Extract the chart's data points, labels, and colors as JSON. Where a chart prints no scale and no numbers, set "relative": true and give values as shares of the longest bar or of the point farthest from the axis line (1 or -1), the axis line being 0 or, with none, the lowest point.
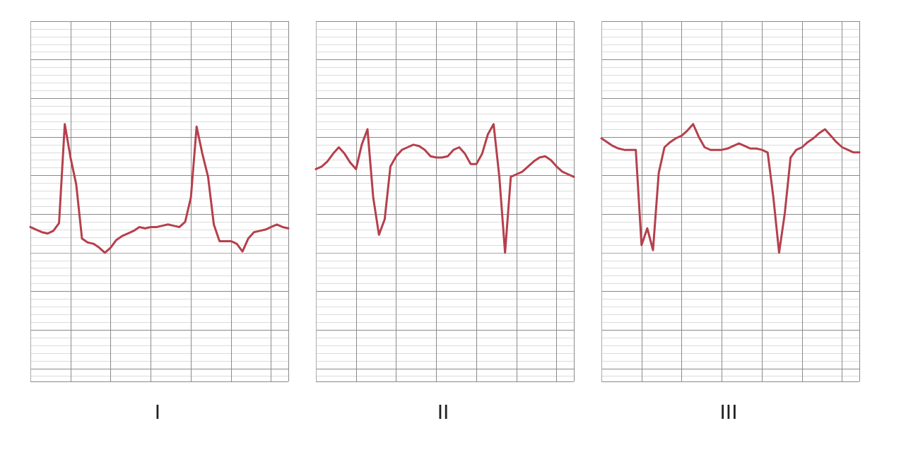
{
  "chart_data": [
    {
      "type": "line",
      "title": "I",
      "relative": true,
      "grid": true,
      "line_style": "solid",
      "color": "#b5404c",
      "categories": [
        null,
        null,
        null,
        null,
        null,
        null,
        null,
        null,
        null,
        null,
        null,
        null,
        null,
        null,
        null,
        null,
        null,
        null,
        null,
        null,
        null,
        null,
        null,
        null,
        null,
        null,
        null,
        null,
        null,
        null,
        null,
        null,
        null,
        null,
        null,
        null,
        null,
        null,
        null,
        null,
        null,
        null,
        null,
        null,
        null,
        null
      ],
      "values": [
        0.2,
        0.18,
        0.16,
        0.15,
        0.17,
        0.23,
        1,
        0.74,
        0.53,
        0.11,
        0.08,
        0.07,
        0.04,
        0,
        0.04,
        0.1,
        0.13,
        0.15,
        0.17,
        0.2,
        0.19,
        0.2,
        0.2,
        0.21,
        0.22,
        0.21,
        0.2,
        0.24,
        0.43,
        0.98,
        0.77,
        0.59,
        0.22,
        0.09,
        0.09,
        0.09,
        0.07,
        0.01,
        0.11,
        0.16,
        0.17,
        0.18,
        0.2,
        0.22,
        0.2,
        0.19
      ]
    },
    {
      "type": "line",
      "title": "II",
      "relative": true,
      "grid": true,
      "line_style": "solid",
      "color": "#b5404c",
      "categories": [
        null,
        null,
        null,
        null,
        null,
        null,
        null,
        null,
        null,
        null,
        null,
        null,
        null,
        null,
        null,
        null,
        null,
        null,
        null,
        null,
        null,
        null,
        null,
        null,
        null,
        null,
        null,
        null,
        null,
        null,
        null,
        null,
        null,
        null,
        null,
        null,
        null,
        null,
        null,
        null,
        null,
        null,
        null,
        null,
        null,
        null
      ],
      "values": [
        0.65,
        0.67,
        0.71,
        0.77,
        0.82,
        0.77,
        0.7,
        0.65,
        0.84,
        0.96,
        0.43,
        0.14,
        0.26,
        0.67,
        0.75,
        0.8,
        0.82,
        0.84,
        0.83,
        0.8,
        0.75,
        0.74,
        0.74,
        0.75,
        0.8,
        0.82,
        0.77,
        0.69,
        0.69,
        0.77,
        0.92,
        1,
        0.59,
        0,
        0.59,
        0.61,
        0.63,
        0.67,
        0.71,
        0.74,
        0.75,
        0.72,
        0.67,
        0.63,
        0.61,
        0.59
      ]
    },
    {
      "type": "line",
      "title": "III",
      "relative": true,
      "grid": true,
      "line_style": "solid",
      "color": "#b5404c",
      "categories": [
        null,
        null,
        null,
        null,
        null,
        null,
        null,
        null,
        null,
        null,
        null,
        null,
        null,
        null,
        null,
        null,
        null,
        null,
        null,
        null,
        null,
        null,
        null,
        null,
        null,
        null,
        null,
        null,
        null,
        null,
        null,
        null,
        null,
        null,
        null,
        null,
        null,
        null,
        null,
        null,
        null,
        null,
        null,
        null,
        null,
        null
      ],
      "values": [
        0.89,
        0.86,
        0.83,
        0.81,
        0.8,
        0.8,
        0.8,
        0.06,
        0.19,
        0.02,
        0.62,
        0.82,
        0.86,
        0.89,
        0.91,
        0.95,
        1,
        0.9,
        0.82,
        0.8,
        0.8,
        0.8,
        0.81,
        0.83,
        0.85,
        0.83,
        0.81,
        0.81,
        0.8,
        0.78,
        0.43,
        0,
        0.31,
        0.74,
        0.8,
        0.82,
        0.86,
        0.89,
        0.93,
        0.96,
        0.91,
        0.86,
        0.82,
        0.8,
        0.78,
        0.78
      ]
    }
  ]
}
